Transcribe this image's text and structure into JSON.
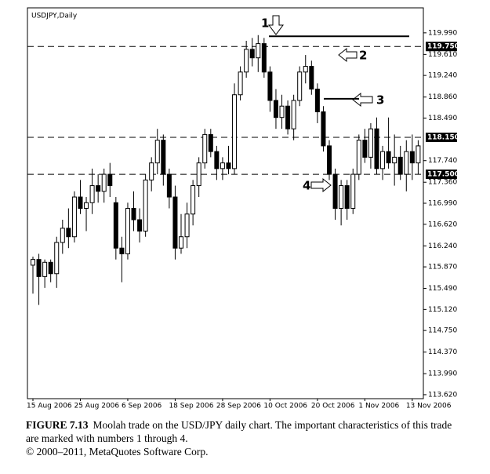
{
  "chart_data": {
    "type": "candlestick",
    "title": "USDJPY,Daily",
    "categories": [
      "15 Aug 2006",
      null,
      null,
      null,
      null,
      null,
      null,
      null,
      "25 Aug 2006",
      null,
      null,
      null,
      null,
      null,
      null,
      null,
      "6 Sep 2006",
      null,
      null,
      null,
      null,
      null,
      null,
      null,
      "18 Sep 2006",
      null,
      null,
      null,
      null,
      null,
      null,
      null,
      "28 Sep 2006",
      null,
      null,
      null,
      null,
      null,
      null,
      null,
      "10 Oct 2006",
      null,
      null,
      null,
      null,
      null,
      null,
      null,
      "20 Oct 2006",
      null,
      null,
      null,
      null,
      null,
      null,
      null,
      "1 Nov 2006",
      null,
      null,
      null,
      null,
      null,
      null,
      null,
      "13 Nov 2006",
      null
    ],
    "open": [
      115.9,
      116.0,
      115.7,
      115.95,
      115.75,
      116.3,
      116.55,
      116.4,
      117.1,
      116.9,
      117.0,
      117.3,
      117.2,
      117.5,
      117.0,
      116.2,
      116.1,
      116.9,
      116.7,
      116.5,
      117.4,
      117.7,
      118.1,
      117.5,
      117.1,
      116.2,
      116.4,
      116.8,
      117.3,
      117.7,
      118.2,
      117.9,
      117.6,
      117.7,
      117.6,
      118.9,
      119.3,
      119.7,
      119.55,
      119.8,
      119.3,
      118.8,
      118.5,
      118.7,
      118.3,
      118.8,
      119.3,
      119.4,
      119.0,
      118.6,
      118.0,
      117.5,
      116.9,
      117.3,
      116.9,
      117.5,
      118.1,
      117.8,
      118.3,
      117.6,
      117.9,
      117.7,
      117.8,
      117.5,
      117.9,
      117.7
    ],
    "high": [
      116.05,
      116.1,
      116.0,
      116.0,
      116.4,
      116.7,
      116.9,
      117.2,
      117.4,
      117.1,
      117.6,
      117.5,
      117.6,
      117.7,
      117.1,
      116.4,
      117.0,
      117.2,
      116.9,
      117.5,
      117.8,
      118.3,
      118.2,
      117.6,
      117.3,
      116.8,
      117.0,
      117.4,
      117.8,
      118.3,
      118.3,
      118.0,
      117.8,
      118.0,
      119.1,
      119.4,
      119.85,
      119.9,
      119.95,
      119.9,
      119.4,
      119.0,
      118.9,
      118.8,
      118.9,
      119.4,
      119.6,
      119.5,
      119.1,
      118.7,
      118.1,
      117.6,
      117.4,
      117.4,
      117.6,
      118.2,
      118.3,
      118.4,
      118.5,
      118.0,
      118.5,
      118.2,
      118.0,
      118.1,
      118.2,
      118.1
    ],
    "low": [
      115.4,
      115.2,
      115.5,
      115.6,
      115.5,
      116.1,
      116.2,
      116.3,
      116.8,
      116.5,
      116.8,
      117.0,
      117.0,
      117.1,
      116.0,
      115.6,
      116.0,
      116.5,
      116.3,
      116.4,
      117.2,
      117.5,
      117.3,
      116.9,
      116.0,
      116.1,
      116.2,
      116.6,
      117.1,
      117.6,
      117.8,
      117.4,
      117.4,
      117.5,
      117.5,
      118.8,
      119.2,
      119.4,
      119.3,
      119.2,
      118.6,
      118.3,
      118.3,
      118.2,
      118.1,
      118.7,
      119.1,
      118.9,
      118.4,
      117.9,
      117.4,
      116.7,
      116.6,
      116.7,
      116.8,
      117.4,
      117.7,
      117.6,
      117.5,
      117.4,
      117.6,
      117.3,
      117.4,
      117.2,
      117.4,
      117.5
    ],
    "close": [
      116.0,
      115.7,
      115.95,
      115.75,
      116.3,
      116.55,
      116.4,
      117.1,
      116.9,
      117.0,
      117.3,
      117.2,
      117.5,
      117.3,
      116.2,
      116.1,
      116.9,
      116.7,
      116.5,
      117.4,
      117.7,
      118.1,
      117.5,
      117.1,
      116.2,
      116.4,
      116.8,
      117.3,
      117.7,
      118.2,
      117.9,
      117.6,
      117.7,
      117.6,
      118.9,
      119.3,
      119.7,
      119.55,
      119.8,
      119.3,
      118.8,
      118.5,
      118.7,
      118.3,
      118.8,
      119.3,
      119.4,
      119.0,
      118.6,
      118.0,
      117.5,
      116.9,
      117.3,
      116.9,
      117.5,
      118.1,
      117.8,
      118.3,
      117.6,
      117.9,
      117.7,
      117.8,
      117.5,
      117.9,
      117.7,
      118.0
    ],
    "ylim": [
      113.55,
      120.43
    ],
    "yticks": [
      {
        "value": 119.99,
        "label": "119.990"
      },
      {
        "value": 119.61,
        "label": "119.610"
      },
      {
        "value": 119.24,
        "label": "119.240"
      },
      {
        "value": 118.86,
        "label": "118.860"
      },
      {
        "value": 118.49,
        "label": "118.490"
      },
      {
        "value": 117.74,
        "label": "117.740"
      },
      {
        "value": 117.36,
        "label": "117.360"
      },
      {
        "value": 116.99,
        "label": "116.990"
      },
      {
        "value": 116.62,
        "label": "116.620"
      },
      {
        "value": 116.24,
        "label": "116.240"
      },
      {
        "value": 115.87,
        "label": "115.870"
      },
      {
        "value": 115.49,
        "label": "115.490"
      },
      {
        "value": 115.12,
        "label": "115.120"
      },
      {
        "value": 114.75,
        "label": "114.750"
      },
      {
        "value": 114.37,
        "label": "114.370"
      },
      {
        "value": 113.99,
        "label": "113.990"
      },
      {
        "value": 113.62,
        "label": "113.620"
      }
    ],
    "levels": [
      {
        "value": 119.75,
        "label": "119.750"
      },
      {
        "value": 118.15,
        "label": "118.150"
      },
      {
        "value": 117.5,
        "label": "117.500"
      }
    ],
    "hlines": [
      119.93,
      118.83
    ],
    "annotations": [
      "1",
      "2",
      "3",
      "4"
    ]
  },
  "caption": {
    "label": "FIGURE 7.13",
    "text": "Moolah trade on the USD/JPY daily chart. The important characteristics of this trade are marked with numbers 1 through 4.",
    "copyright": "© 2000–2011, MetaQuotes Software Corp."
  }
}
